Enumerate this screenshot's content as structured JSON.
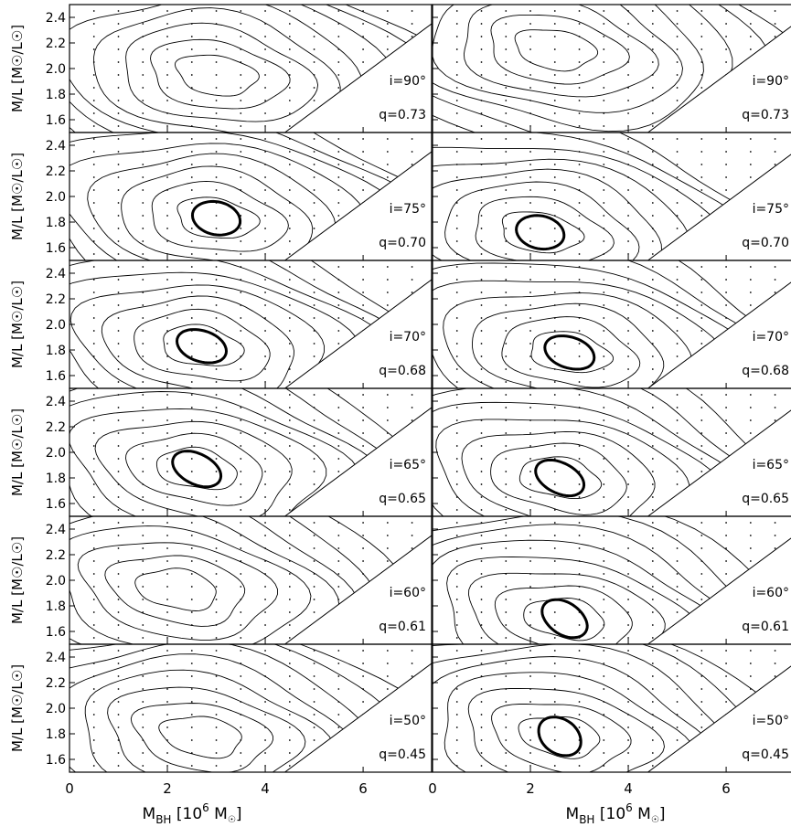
{
  "chart_data": {
    "type": "contour",
    "layout": "6 rows x 2 columns, shared axes",
    "xlabel": "M_BH [10^6 M_sun]",
    "ylabel": "M/L [M_sun/L_sun]",
    "xlim": [
      0,
      7.4
    ],
    "ylim": [
      1.5,
      2.5
    ],
    "xticks": [
      "0",
      "2",
      "4",
      "6"
    ],
    "yticks": [
      "1.6",
      "1.8",
      "2.0",
      "2.2",
      "2.4"
    ],
    "rows": [
      {
        "inclination": "i=90°",
        "q": "q=0.73",
        "left": {
          "min": [
            3.0,
            1.95
          ],
          "has_bold": false
        },
        "right": {
          "min": [
            2.5,
            2.15
          ],
          "has_bold": false
        }
      },
      {
        "inclination": "i=75°",
        "q": "q=0.70",
        "left": {
          "min": [
            3.0,
            1.83
          ],
          "has_bold": true
        },
        "right": {
          "min": [
            2.2,
            1.72
          ],
          "has_bold": true
        }
      },
      {
        "inclination": "i=70°",
        "q": "q=0.68",
        "left": {
          "min": [
            2.7,
            1.83
          ],
          "has_bold": true
        },
        "right": {
          "min": [
            2.8,
            1.78
          ],
          "has_bold": true
        }
      },
      {
        "inclination": "i=65°",
        "q": "q=0.65",
        "left": {
          "min": [
            2.6,
            1.87
          ],
          "has_bold": true
        },
        "right": {
          "min": [
            2.6,
            1.8
          ],
          "has_bold": true
        }
      },
      {
        "inclination": "i=60°",
        "q": "q=0.61",
        "left": {
          "min": [
            2.2,
            1.93
          ],
          "has_bold": false
        },
        "right": {
          "min": [
            2.7,
            1.7
          ],
          "has_bold": true
        }
      },
      {
        "inclination": "i=50°",
        "q": "q=0.45",
        "left": {
          "min": [
            2.7,
            1.78
          ],
          "has_bold": false
        },
        "right": {
          "min": [
            2.6,
            1.78
          ],
          "has_bold": true
        }
      }
    ],
    "grid": false,
    "legend": "none"
  },
  "axes": {
    "xlabel_main": "M",
    "xlabel_sub": "BH",
    "xlabel_bracket_open": " [10",
    "xlabel_sup": "6",
    "xlabel_unit": " M",
    "xlabel_close": "]",
    "ylabel_main": "M/L [M",
    "ylabel_mid": "/L",
    "ylabel_close": "]"
  }
}
